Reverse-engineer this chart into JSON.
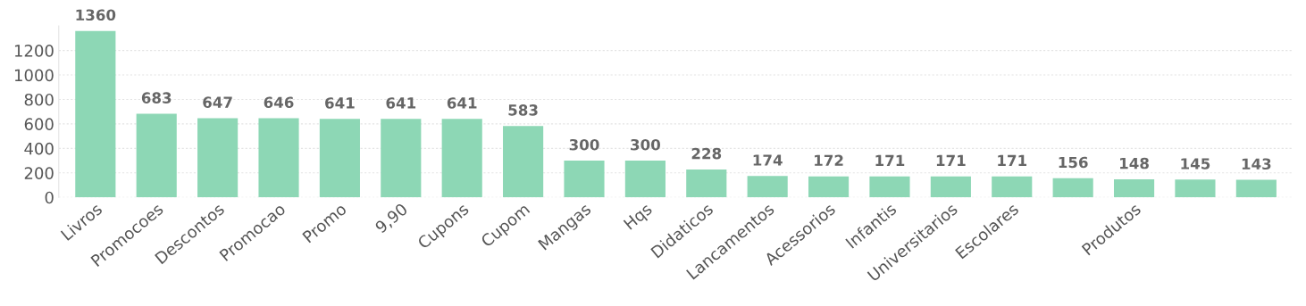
{
  "chart_data": {
    "type": "bar",
    "categories": [
      "Livros",
      "Promocoes",
      "Descontos",
      "Promocao",
      "Promo",
      "9,90",
      "Cupons",
      "Cupom",
      "Mangas",
      "Hqs",
      "Didaticos",
      "Lancamentos",
      "Acessorios",
      "Infantis",
      "Universitarios",
      "Escolares",
      null,
      "Produtos",
      null,
      null
    ],
    "values": [
      1360,
      683,
      647,
      646,
      641,
      641,
      641,
      583,
      300,
      300,
      228,
      174,
      172,
      171,
      171,
      171,
      156,
      148,
      145,
      143
    ],
    "color": "#8dd7b5",
    "ylim": [
      0,
      1400
    ],
    "yticks": [
      0,
      200,
      400,
      600,
      800,
      1000,
      1200
    ],
    "grid": "y",
    "data_labels": true
  }
}
